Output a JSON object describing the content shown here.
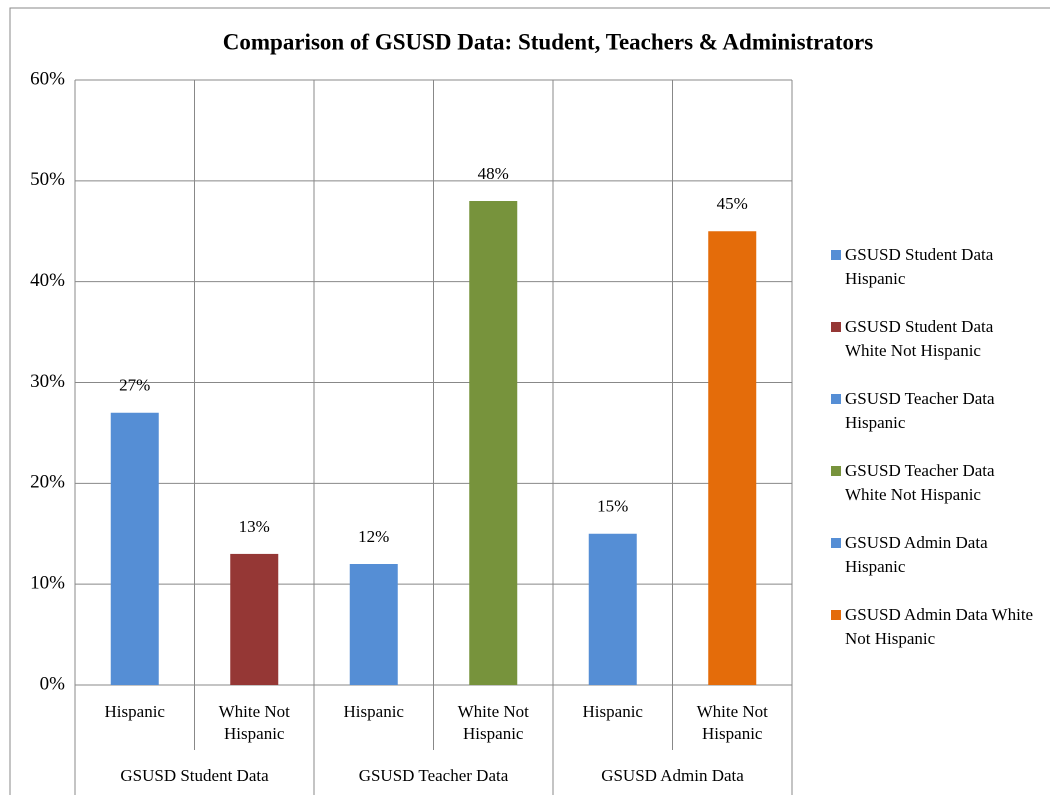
{
  "chart_data": {
    "type": "bar",
    "title": "Comparison of GSUSD Data: Student, Teachers & Administrators",
    "categories": [
      "Hispanic",
      "White Not Hispanic",
      "Hispanic",
      "White Not Hispanic",
      "Hispanic",
      "White Not Hispanic"
    ],
    "groups": [
      "GSUSD Student Data",
      "GSUSD Teacher Data",
      "GSUSD Admin Data"
    ],
    "series": [
      {
        "name": "GSUSD Student Data Hispanic",
        "color": "#558ed5",
        "values": [
          27,
          null,
          null,
          null,
          null,
          null
        ],
        "value_labels": [
          "27%",
          null,
          null,
          null,
          null,
          null
        ]
      },
      {
        "name": "GSUSD Student Data White Not Hispanic",
        "color": "#953735",
        "values": [
          null,
          13,
          null,
          null,
          null,
          null
        ],
        "value_labels": [
          null,
          "13%",
          null,
          null,
          null,
          null
        ]
      },
      {
        "name": "GSUSD Teacher Data Hispanic",
        "color": "#558ed5",
        "values": [
          null,
          null,
          12,
          null,
          null,
          null
        ],
        "value_labels": [
          null,
          null,
          "12%",
          null,
          null,
          null
        ]
      },
      {
        "name": "GSUSD Teacher Data White Not Hispanic",
        "color": "#77933c",
        "values": [
          null,
          null,
          null,
          48,
          null,
          null
        ],
        "value_labels": [
          null,
          null,
          null,
          "48%",
          null,
          null
        ]
      },
      {
        "name": "GSUSD Admin Data Hispanic",
        "color": "#558ed5",
        "values": [
          null,
          null,
          null,
          null,
          15,
          null
        ],
        "value_labels": [
          null,
          null,
          null,
          null,
          "15%",
          null
        ]
      },
      {
        "name": "GSUSD Admin Data White Not Hispanic",
        "color": "#e46c0a",
        "values": [
          null,
          null,
          null,
          null,
          null,
          45
        ],
        "value_labels": [
          null,
          null,
          null,
          null,
          null,
          "45%"
        ]
      }
    ],
    "ylim": [
      0,
      60
    ],
    "yticks": [
      {
        "value": 0,
        "label": "0%"
      },
      {
        "value": 10,
        "label": "10%"
      },
      {
        "value": 20,
        "label": "20%"
      },
      {
        "value": 30,
        "label": "30%"
      },
      {
        "value": 40,
        "label": "40%"
      },
      {
        "value": 50,
        "label": "50%"
      },
      {
        "value": 60,
        "label": "60%"
      }
    ],
    "grid": true,
    "legend": "right"
  }
}
